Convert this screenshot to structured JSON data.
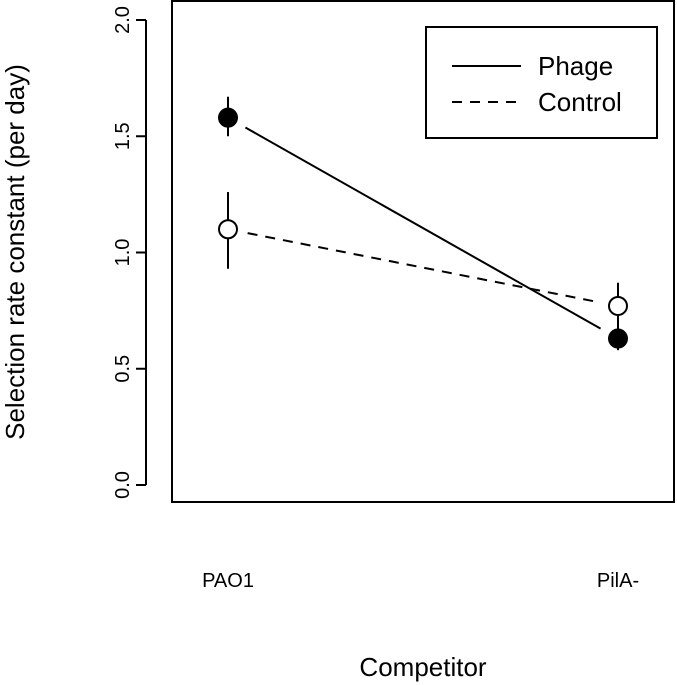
{
  "chart_data": {
    "type": "line",
    "categories": [
      "PAO1",
      "PilA-"
    ],
    "xlabel": "Competitor",
    "ylabel": "Selection rate constant (per day)",
    "ylim": [
      0,
      2
    ],
    "yticks": [
      "0.0",
      "0.5",
      "1.0",
      "1.5",
      "2.0"
    ],
    "grid": false,
    "legend_position": "top-right",
    "series": [
      {
        "name": "Phage",
        "line_style": "solid",
        "marker": "filled-circle",
        "values": [
          1.58,
          0.63
        ],
        "lower": [
          1.5,
          0.58
        ],
        "upper": [
          1.67,
          0.68
        ]
      },
      {
        "name": "Control",
        "line_style": "dashed",
        "marker": "open-circle",
        "values": [
          1.1,
          0.77
        ],
        "lower": [
          0.93,
          0.67
        ],
        "upper": [
          1.26,
          0.87
        ]
      }
    ]
  }
}
